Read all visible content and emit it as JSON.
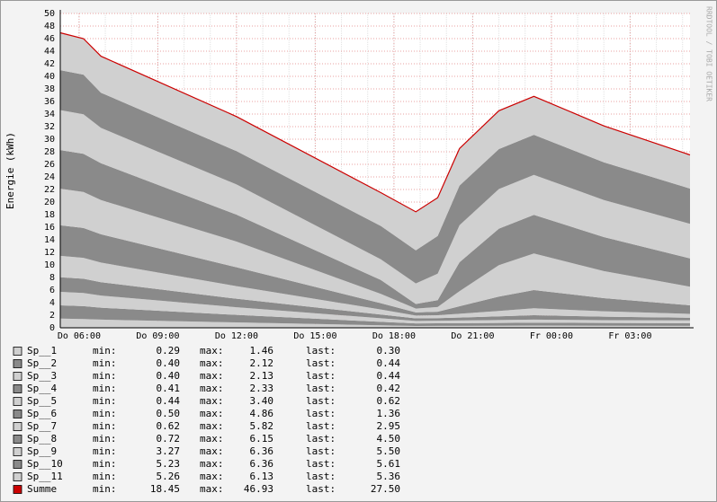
{
  "chart_data": {
    "type": "stacked-area",
    "y_label": "Energie (kWh)",
    "watermark": "RRDTOOL / TOBI OETIKER",
    "x": [
      "Do 05:17",
      "Do 06:10",
      "Do 06:50",
      "Do 12:00",
      "Do 17:30",
      "Do 18:50",
      "Do 19:40",
      "Do 20:30",
      "Do 22:00",
      "Do 23:20",
      "Fr 02:00",
      "Fr 05:17"
    ],
    "xlim": [
      "Do 05:17",
      "Fr 05:17"
    ],
    "xticks": [
      "Do 06:00",
      "Do 09:00",
      "Do 12:00",
      "Do 15:00",
      "Do 18:00",
      "Do 21:00",
      "Fr 00:00",
      "Fr 03:00"
    ],
    "ylim": [
      0,
      50
    ],
    "yticks": [
      0,
      2,
      4,
      6,
      8,
      10,
      12,
      14,
      16,
      18,
      20,
      22,
      24,
      26,
      28,
      30,
      32,
      34,
      36,
      38,
      40,
      42,
      44,
      46,
      48,
      50
    ],
    "grid": true,
    "series": [
      {
        "name": "Sp__1",
        "color": "#d0d0d0",
        "values": [
          1.46,
          1.4,
          1.3,
          0.85,
          0.4,
          0.29,
          0.3,
          0.31,
          0.33,
          0.35,
          0.32,
          0.3
        ]
      },
      {
        "name": "Sp__2",
        "color": "#8a8a8a",
        "values": [
          2.12,
          2.05,
          1.9,
          1.2,
          0.55,
          0.4,
          0.41,
          0.42,
          0.44,
          0.45,
          0.44,
          0.44
        ]
      },
      {
        "name": "Sp__3",
        "color": "#d0d0d0",
        "values": [
          2.13,
          2.08,
          1.93,
          1.22,
          0.56,
          0.4,
          0.41,
          0.43,
          0.47,
          0.5,
          0.46,
          0.44
        ]
      },
      {
        "name": "Sp__4",
        "color": "#8a8a8a",
        "values": [
          2.33,
          2.27,
          2.12,
          1.35,
          0.6,
          0.41,
          0.42,
          0.47,
          0.58,
          0.7,
          0.55,
          0.42
        ]
      },
      {
        "name": "Sp__5",
        "color": "#d0d0d0",
        "values": [
          3.4,
          3.32,
          3.12,
          2.0,
          0.8,
          0.44,
          0.46,
          0.6,
          0.85,
          1.1,
          0.85,
          0.62
        ]
      },
      {
        "name": "Sp__6",
        "color": "#8a8a8a",
        "values": [
          4.86,
          4.76,
          4.5,
          3.0,
          1.0,
          0.5,
          0.55,
          1.2,
          2.3,
          2.9,
          2.1,
          1.36
        ]
      },
      {
        "name": "Sp__7",
        "color": "#d0d0d0",
        "values": [
          5.82,
          5.72,
          5.45,
          4.1,
          1.49,
          0.62,
          0.75,
          2.4,
          5.0,
          5.82,
          4.3,
          2.95
        ]
      },
      {
        "name": "Sp__8",
        "color": "#8a8a8a",
        "values": [
          6.15,
          6.07,
          5.85,
          4.28,
          2.2,
          0.72,
          1.1,
          4.6,
          5.8,
          6.15,
          5.4,
          4.5
        ]
      },
      {
        "name": "Sp__9",
        "color": "#d0d0d0",
        "values": [
          6.36,
          6.3,
          5.63,
          4.8,
          3.3,
          3.27,
          4.2,
          5.9,
          6.3,
          6.36,
          5.9,
          5.5
        ]
      },
      {
        "name": "Sp__10",
        "color": "#8a8a8a",
        "values": [
          6.36,
          6.3,
          5.6,
          5.3,
          5.3,
          5.27,
          6.0,
          6.3,
          6.36,
          6.36,
          6.0,
          5.61
        ]
      },
      {
        "name": "Sp__11",
        "color": "#d0d0d0",
        "values": [
          5.94,
          5.73,
          5.8,
          5.5,
          5.3,
          6.13,
          6.1,
          5.9,
          6.1,
          6.13,
          5.8,
          5.36
        ]
      }
    ],
    "total": {
      "name": "Summe",
      "color": "#cc0000",
      "values": [
        46.93,
        46.0,
        43.2,
        33.6,
        21.5,
        18.45,
        20.7,
        28.53,
        34.53,
        36.82,
        32.12,
        27.5
      ]
    },
    "legend_stats": {
      "labels": [
        "min:",
        "max:",
        "last:"
      ],
      "rows": [
        [
          "0.29",
          "1.46",
          "0.30"
        ],
        [
          "0.40",
          "2.12",
          "0.44"
        ],
        [
          "0.40",
          "2.13",
          "0.44"
        ],
        [
          "0.41",
          "2.33",
          "0.42"
        ],
        [
          "0.44",
          "3.40",
          "0.62"
        ],
        [
          "0.50",
          "4.86",
          "1.36"
        ],
        [
          "0.62",
          "5.82",
          "2.95"
        ],
        [
          "0.72",
          "6.15",
          "4.50"
        ],
        [
          "3.27",
          "6.36",
          "5.50"
        ],
        [
          "5.23",
          "6.36",
          "5.61"
        ],
        [
          "5.26",
          "6.13",
          "5.36"
        ],
        [
          "18.45",
          "46.93",
          "27.50"
        ]
      ]
    }
  }
}
